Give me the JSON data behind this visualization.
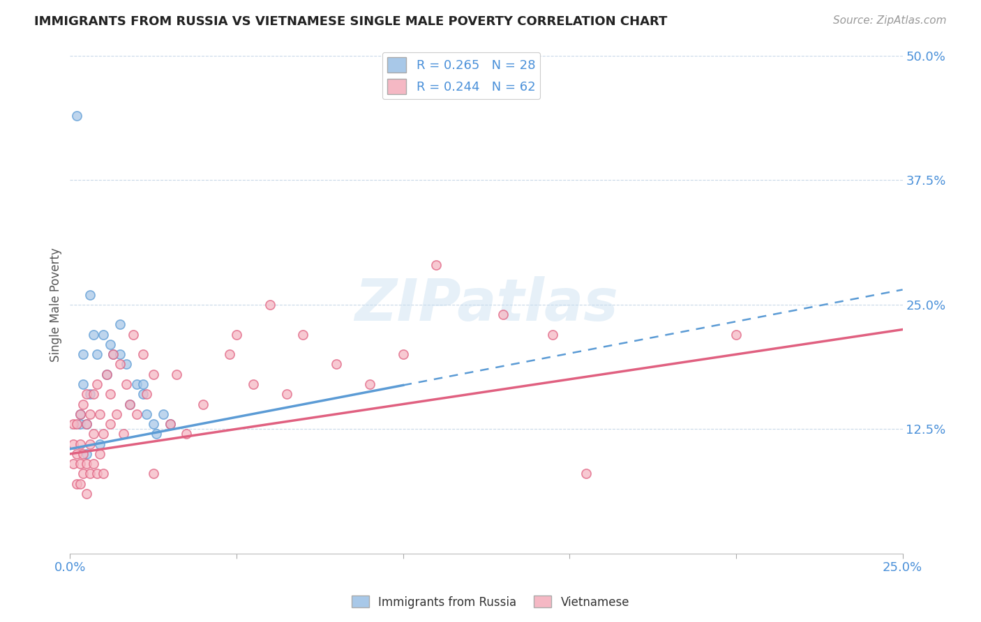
{
  "title": "IMMIGRANTS FROM RUSSIA VS VIETNAMESE SINGLE MALE POVERTY CORRELATION CHART",
  "source": "Source: ZipAtlas.com",
  "ylabel": "Single Male Poverty",
  "xlim": [
    0.0,
    0.25
  ],
  "ylim": [
    0.0,
    0.5
  ],
  "xticks": [
    0.0,
    0.05,
    0.1,
    0.15,
    0.2,
    0.25
  ],
  "yticks": [
    0.0,
    0.125,
    0.25,
    0.375,
    0.5
  ],
  "xtick_labels": [
    "0.0%",
    "",
    "",
    "",
    "",
    "25.0%"
  ],
  "ytick_labels": [
    "",
    "12.5%",
    "25.0%",
    "37.5%",
    "50.0%"
  ],
  "russia_R": 0.265,
  "russia_N": 28,
  "viet_R": 0.244,
  "viet_N": 62,
  "russia_color": "#a8c8e8",
  "viet_color": "#f5b8c4",
  "russia_line_color": "#5b9bd5",
  "viet_line_color": "#e06080",
  "watermark": "ZIPatlas",
  "background_color": "#ffffff",
  "russia_x": [
    0.002,
    0.003,
    0.003,
    0.004,
    0.004,
    0.005,
    0.005,
    0.006,
    0.006,
    0.007,
    0.008,
    0.009,
    0.01,
    0.011,
    0.012,
    0.013,
    0.015,
    0.015,
    0.017,
    0.018,
    0.02,
    0.022,
    0.022,
    0.023,
    0.025,
    0.026,
    0.028,
    0.03
  ],
  "russia_y": [
    0.44,
    0.13,
    0.14,
    0.17,
    0.2,
    0.1,
    0.13,
    0.16,
    0.26,
    0.22,
    0.2,
    0.11,
    0.22,
    0.18,
    0.21,
    0.2,
    0.23,
    0.2,
    0.19,
    0.15,
    0.17,
    0.16,
    0.17,
    0.14,
    0.13,
    0.12,
    0.14,
    0.13
  ],
  "viet_x": [
    0.001,
    0.001,
    0.001,
    0.002,
    0.002,
    0.002,
    0.003,
    0.003,
    0.003,
    0.003,
    0.004,
    0.004,
    0.004,
    0.005,
    0.005,
    0.005,
    0.005,
    0.006,
    0.006,
    0.006,
    0.007,
    0.007,
    0.007,
    0.008,
    0.008,
    0.009,
    0.009,
    0.01,
    0.01,
    0.011,
    0.012,
    0.012,
    0.013,
    0.014,
    0.015,
    0.016,
    0.017,
    0.018,
    0.019,
    0.02,
    0.022,
    0.023,
    0.025,
    0.025,
    0.03,
    0.032,
    0.035,
    0.04,
    0.048,
    0.05,
    0.055,
    0.06,
    0.065,
    0.07,
    0.08,
    0.09,
    0.1,
    0.11,
    0.13,
    0.145,
    0.155,
    0.2
  ],
  "viet_y": [
    0.09,
    0.11,
    0.13,
    0.07,
    0.1,
    0.13,
    0.07,
    0.09,
    0.11,
    0.14,
    0.08,
    0.1,
    0.15,
    0.06,
    0.09,
    0.13,
    0.16,
    0.08,
    0.11,
    0.14,
    0.09,
    0.12,
    0.16,
    0.08,
    0.17,
    0.1,
    0.14,
    0.08,
    0.12,
    0.18,
    0.13,
    0.16,
    0.2,
    0.14,
    0.19,
    0.12,
    0.17,
    0.15,
    0.22,
    0.14,
    0.2,
    0.16,
    0.08,
    0.18,
    0.13,
    0.18,
    0.12,
    0.15,
    0.2,
    0.22,
    0.17,
    0.25,
    0.16,
    0.22,
    0.19,
    0.17,
    0.2,
    0.29,
    0.24,
    0.22,
    0.08,
    0.22
  ],
  "russia_line_x0": 0.0,
  "russia_line_x1": 0.25,
  "russia_line_y0": 0.105,
  "russia_line_y1": 0.265,
  "russia_line_solid_x1": 0.1,
  "viet_line_x0": 0.0,
  "viet_line_x1": 0.25,
  "viet_line_y0": 0.1,
  "viet_line_y1": 0.225
}
